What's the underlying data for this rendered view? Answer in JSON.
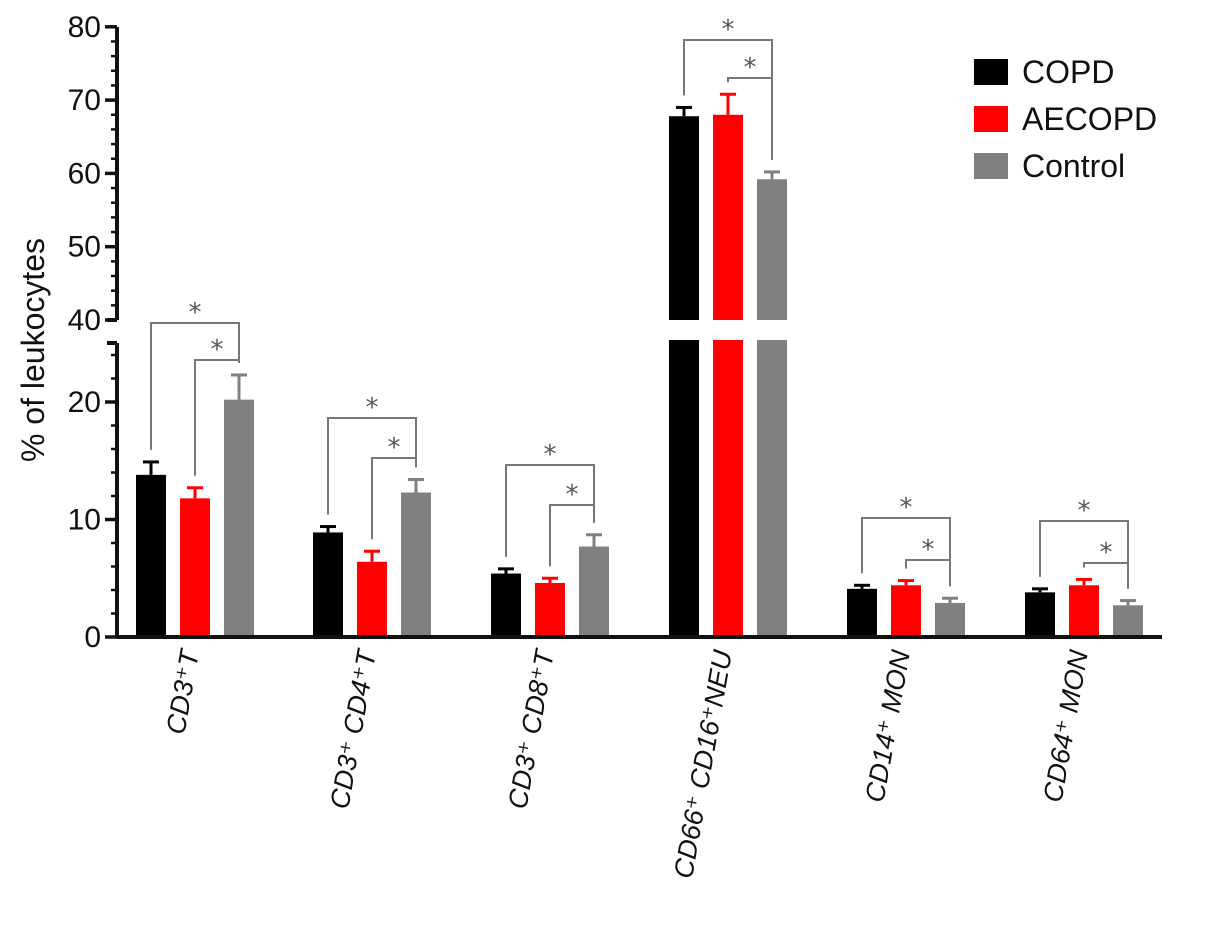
{
  "chart_data": {
    "type": "bar",
    "ylabel": "% of leukocytes",
    "categories": [
      {
        "id": "cd3-t",
        "label": "CD3⁺T"
      },
      {
        "id": "cd3-cd4-t",
        "label": "CD3⁺ CD4⁺T"
      },
      {
        "id": "cd3-cd8-t",
        "label": "CD3⁺ CD8⁺T"
      },
      {
        "id": "cd66-cd16-neu",
        "label": "CD66⁺ CD16⁺NEU"
      },
      {
        "id": "cd14-mon",
        "label": "CD14⁺ MON"
      },
      {
        "id": "cd64-mon",
        "label": "CD64⁺ MON"
      }
    ],
    "series": [
      {
        "name": "COPD",
        "color": "#000000",
        "values": [
          13.8,
          8.9,
          5.4,
          67.8,
          4.1,
          3.8
        ],
        "errors": [
          1.1,
          0.5,
          0.4,
          1.2,
          0.3,
          0.3
        ]
      },
      {
        "name": "AECOPD",
        "color": "#ff0000",
        "values": [
          11.8,
          6.4,
          4.6,
          68.0,
          4.4,
          4.4
        ],
        "errors": [
          0.9,
          0.9,
          0.4,
          2.8,
          0.4,
          0.5
        ]
      },
      {
        "name": "Control",
        "color": "#808080",
        "values": [
          20.2,
          12.3,
          7.7,
          59.2,
          2.9,
          2.7
        ],
        "errors": [
          2.1,
          1.1,
          1.0,
          1.0,
          0.4,
          0.4
        ]
      }
    ],
    "y_axis": {
      "break": true,
      "lower_range": [
        0,
        25
      ],
      "upper_range": [
        40,
        80
      ],
      "lower_ticks": [
        "0",
        "10",
        "20"
      ],
      "upper_ticks": [
        "40",
        "50",
        "60",
        "70",
        "80"
      ]
    },
    "significance": [
      {
        "category": "cd3-t",
        "brackets": [
          [
            "COPD",
            "Control",
            "*"
          ],
          [
            "AECOPD",
            "Control",
            "*"
          ]
        ]
      },
      {
        "category": "cd3-cd4-t",
        "brackets": [
          [
            "COPD",
            "Control",
            "*"
          ],
          [
            "AECOPD",
            "Control",
            "*"
          ]
        ]
      },
      {
        "category": "cd3-cd8-t",
        "brackets": [
          [
            "COPD",
            "Control",
            "*"
          ],
          [
            "AECOPD",
            "Control",
            "*"
          ]
        ]
      },
      {
        "category": "cd66-cd16-neu",
        "brackets": [
          [
            "COPD",
            "Control",
            "*"
          ],
          [
            "AECOPD",
            "Control",
            "*"
          ]
        ]
      },
      {
        "category": "cd14-mon",
        "brackets": [
          [
            "COPD",
            "Control",
            "*"
          ],
          [
            "AECOPD",
            "Control",
            "*"
          ]
        ]
      },
      {
        "category": "cd64-mon",
        "brackets": [
          [
            "COPD",
            "Control",
            "*"
          ],
          [
            "AECOPD",
            "Control",
            "*"
          ]
        ]
      }
    ],
    "legend": {
      "position": "top-right",
      "entries": [
        "COPD",
        "AECOPD",
        "Control"
      ]
    },
    "grid": false
  }
}
